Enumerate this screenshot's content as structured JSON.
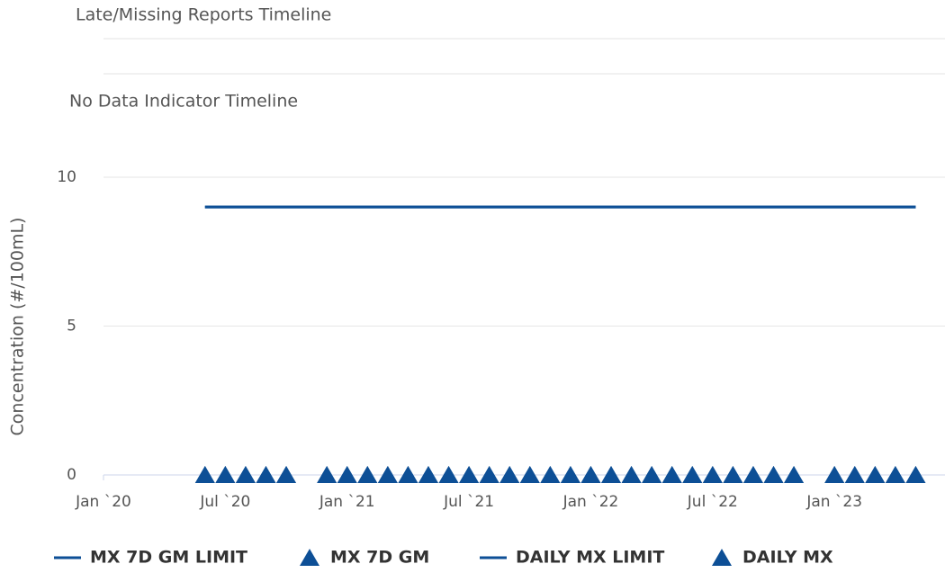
{
  "chart_data": {
    "type": "line",
    "timelines": [
      "Late/Missing Reports Timeline",
      "No Data Indicator Timeline"
    ],
    "y_label": "Concentration (#/100mL)",
    "x": [
      "2020-06",
      "2020-07",
      "2020-08",
      "2020-09",
      "2020-10",
      "2020-11",
      "2020-12",
      "2021-01",
      "2021-02",
      "2021-03",
      "2021-04",
      "2021-05",
      "2021-06",
      "2021-07",
      "2021-08",
      "2021-09",
      "2021-10",
      "2021-11",
      "2021-12",
      "2022-01",
      "2022-02",
      "2022-03",
      "2022-04",
      "2022-05",
      "2022-06",
      "2022-07",
      "2022-08",
      "2022-09",
      "2022-10",
      "2022-11",
      "2022-12",
      "2023-01",
      "2023-02",
      "2023-03",
      "2023-04",
      "2023-05"
    ],
    "series": [
      {
        "name": "MX 7D GM LIMIT",
        "marker": "line",
        "color": "#0d4f96",
        "values": [
          9,
          9,
          9,
          9,
          9,
          9,
          9,
          9,
          9,
          9,
          9,
          9,
          9,
          9,
          9,
          9,
          9,
          9,
          9,
          9,
          9,
          9,
          9,
          9,
          9,
          9,
          9,
          9,
          9,
          9,
          9,
          9,
          9,
          9,
          9,
          9
        ]
      },
      {
        "name": "MX 7D GM",
        "marker": "triangle",
        "color": "#0d4f96",
        "values": [
          0,
          0,
          0,
          0,
          0,
          null,
          0,
          0,
          0,
          0,
          0,
          0,
          0,
          0,
          0,
          0,
          0,
          0,
          0,
          0,
          0,
          0,
          0,
          0,
          0,
          0,
          0,
          0,
          0,
          0,
          null,
          0,
          0,
          0,
          0,
          0
        ]
      },
      {
        "name": "DAILY MX LIMIT",
        "marker": "line",
        "color": "#0d4f96",
        "values": [
          9,
          9,
          9,
          9,
          9,
          9,
          9,
          9,
          9,
          9,
          9,
          9,
          9,
          9,
          9,
          9,
          9,
          9,
          9,
          9,
          9,
          9,
          9,
          9,
          9,
          9,
          9,
          9,
          9,
          9,
          9,
          9,
          9,
          9,
          9,
          9
        ]
      },
      {
        "name": "DAILY MX",
        "marker": "triangle",
        "color": "#0d4f96",
        "values": [
          0,
          0,
          0,
          0,
          0,
          null,
          0,
          0,
          0,
          0,
          0,
          0,
          0,
          0,
          0,
          0,
          0,
          0,
          0,
          0,
          0,
          0,
          0,
          0,
          0,
          0,
          0,
          0,
          0,
          0,
          null,
          0,
          0,
          0,
          0,
          0
        ]
      }
    ],
    "xlim": [
      "2020-01",
      "2023-06"
    ],
    "xticks": [
      {
        "value": "2020-01",
        "label": "Jan `20"
      },
      {
        "value": "2020-07",
        "label": "Jul `20"
      },
      {
        "value": "2021-01",
        "label": "Jan `21"
      },
      {
        "value": "2021-07",
        "label": "Jul `21"
      },
      {
        "value": "2022-01",
        "label": "Jan `22"
      },
      {
        "value": "2022-07",
        "label": "Jul `22"
      },
      {
        "value": "2023-01",
        "label": "Jan `23"
      }
    ],
    "ylim": [
      0,
      10
    ],
    "yticks": [
      0,
      5,
      10
    ],
    "grid": true,
    "legend": "bottom"
  }
}
